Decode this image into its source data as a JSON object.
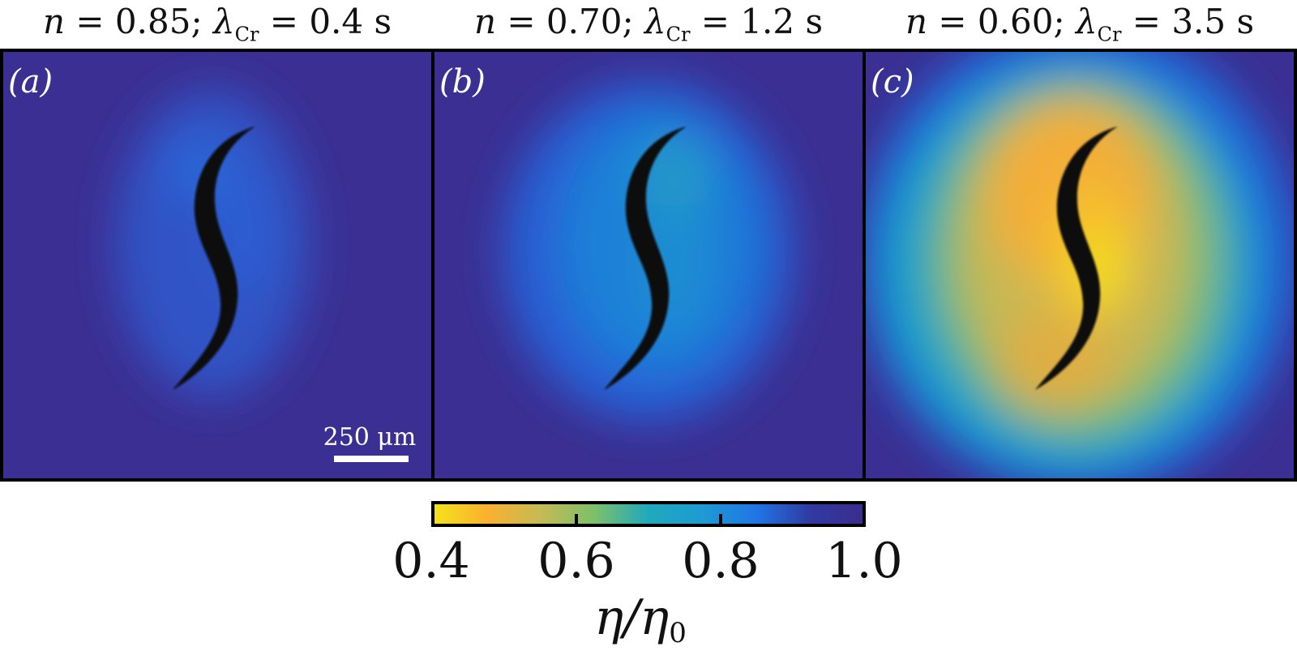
{
  "panels": [
    {
      "id": "a",
      "label": "(a)",
      "title": {
        "n_value": "0.85",
        "lambda_value": "0.4 s"
      },
      "intensity": 0.18
    },
    {
      "id": "b",
      "label": "(b)",
      "title": {
        "n_value": "0.70",
        "lambda_value": "1.2 s"
      },
      "intensity": 0.48
    },
    {
      "id": "c",
      "label": "(c)",
      "title": {
        "n_value": "0.60",
        "lambda_value": "3.5 s"
      },
      "intensity": 1.0
    }
  ],
  "scale_bar": {
    "label": "250 μm"
  },
  "colorbar": {
    "ticks": [
      "0.4",
      "0.6",
      "0.8",
      "1.0"
    ],
    "range": [
      0.4,
      1.0
    ],
    "label": "η/η",
    "label_sub": "0",
    "colors": [
      "#f2e41c",
      "#fbb02f",
      "#c4bb56",
      "#7cc06a",
      "#1fa9bd",
      "#1e9bd4",
      "#2075e6",
      "#303aa2",
      "#3b2d8c"
    ]
  },
  "title_template": {
    "n_symbol": "n",
    "lambda_symbol": "λ",
    "lambda_sub": "Cr"
  },
  "background_color": "#3b2f93",
  "worm_color": "#0a0a0a"
}
